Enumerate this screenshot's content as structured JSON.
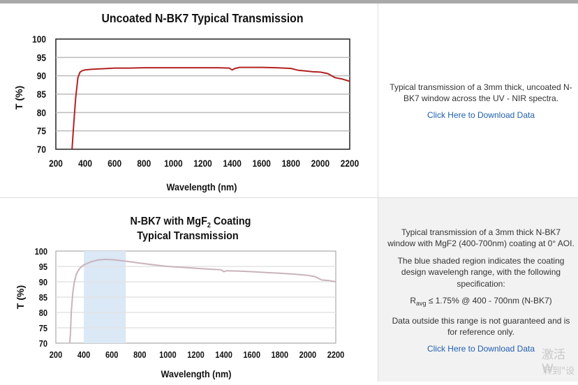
{
  "chart_data": [
    {
      "type": "line",
      "title": "Uncoated N-BK7 Typical Transmission",
      "xlabel": "Wavelength (nm)",
      "ylabel": "T (%)",
      "xlim": [
        200,
        2200
      ],
      "ylim": [
        70,
        100
      ],
      "xticks": [
        200,
        400,
        600,
        800,
        1000,
        1200,
        1400,
        1600,
        1800,
        2000,
        2200
      ],
      "yticks": [
        70,
        75,
        80,
        85,
        90,
        95,
        100
      ],
      "grid": "horizontal",
      "line_color": "#b22222",
      "series": [
        {
          "x": [
            310,
            320,
            335,
            350,
            365,
            380,
            400,
            450,
            500,
            600,
            700,
            800,
            900,
            1000,
            1100,
            1200,
            1300,
            1380,
            1400,
            1420,
            1450,
            1500,
            1600,
            1700,
            1800,
            1850,
            1900,
            1950,
            2000,
            2050,
            2100,
            2150,
            2200
          ],
          "y": [
            70,
            76,
            84,
            89.5,
            91,
            91.4,
            91.6,
            91.8,
            91.9,
            92.1,
            92.1,
            92.2,
            92.2,
            92.2,
            92.2,
            92.2,
            92.2,
            92.1,
            91.6,
            92.0,
            92.3,
            92.3,
            92.3,
            92.2,
            92.0,
            91.5,
            91.3,
            91.1,
            91.0,
            90.6,
            89.5,
            89.1,
            88.5
          ]
        }
      ]
    },
    {
      "type": "line",
      "title_line1": "N-BK7 with MgF",
      "title_sub": "2",
      "title_line1_end": " Coating",
      "title_line2": "Typical Transmission",
      "xlabel": "Wavelength (nm)",
      "ylabel": "T (%)",
      "xlim": [
        200,
        2200
      ],
      "ylim": [
        70,
        100
      ],
      "xticks": [
        200,
        400,
        600,
        800,
        1000,
        1200,
        1400,
        1600,
        1800,
        2000,
        2200
      ],
      "yticks": [
        70,
        75,
        80,
        85,
        90,
        95,
        100
      ],
      "grid": "horizontal",
      "line_color": "#c9b3bd",
      "shaded_region": {
        "x": [
          400,
          700
        ],
        "color": "#dbe8f5"
      },
      "series": [
        {
          "x": [
            300,
            305,
            310,
            320,
            330,
            345,
            360,
            380,
            400,
            450,
            500,
            550,
            600,
            650,
            700,
            800,
            900,
            1000,
            1100,
            1200,
            1300,
            1380,
            1400,
            1420,
            1500,
            1600,
            1700,
            1800,
            1900,
            2000,
            2050,
            2100,
            2150,
            2200
          ],
          "y": [
            70,
            74,
            80,
            86,
            89.5,
            92.3,
            93.7,
            94.8,
            95.5,
            96.5,
            97.1,
            97.3,
            97.2,
            97.0,
            96.7,
            96.1,
            95.5,
            95.0,
            94.7,
            94.4,
            94.1,
            93.9,
            93.3,
            93.6,
            93.5,
            93.3,
            93.0,
            92.8,
            92.5,
            92.1,
            91.7,
            90.6,
            90.4,
            90.0
          ]
        }
      ]
    }
  ],
  "rows": [
    {
      "desc": "Typical transmission of a 3mm thick, uncoated N-BK7 window across the UV - NIR spectra.",
      "link": "Click Here to Download Data"
    },
    {
      "desc1": "Typical transmission of a 3mm thick N-BK7 window with MgF2 (400-700nm) coating at 0° AOI.",
      "desc2": "The blue shaded region indicates the coating design wavelengh range, with the following specification:",
      "spec_main": "R",
      "spec_sub": "avg",
      "spec_rest": " ≤ 1.75% @ 400 - 700nm (N-BK7)",
      "desc3": "Data outside this range is not guaranteed and is for reference only.",
      "link": "Click Here to Download Data"
    }
  ],
  "watermark": {
    "line1": "激活 W",
    "line2": "转到\"设"
  }
}
